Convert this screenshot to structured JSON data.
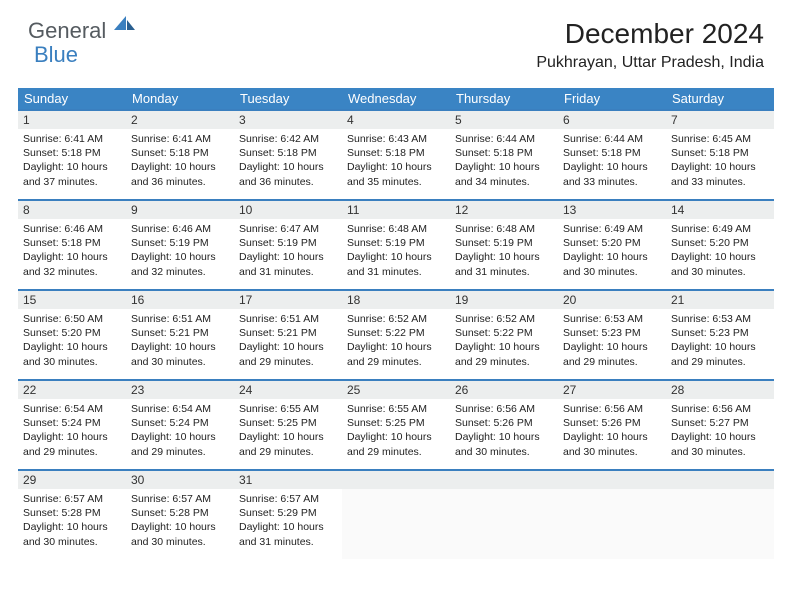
{
  "logo": {
    "text1": "General",
    "text2": "Blue"
  },
  "title": "December 2024",
  "subtitle": "Pukhrayan, Uttar Pradesh, India",
  "colors": {
    "header_bg": "#3a84c4",
    "header_text": "#ffffff",
    "row_border": "#3a7fbf",
    "daynum_bg": "#eceeee",
    "body_text": "#222222",
    "logo_gray": "#555b60",
    "logo_blue": "#3a7fbf",
    "page_bg": "#ffffff"
  },
  "fonts": {
    "title_size": 28,
    "subtitle_size": 16,
    "dayname_size": 13,
    "daynum_size": 12,
    "cell_size": 10.5
  },
  "daynames": [
    "Sunday",
    "Monday",
    "Tuesday",
    "Wednesday",
    "Thursday",
    "Friday",
    "Saturday"
  ],
  "weeks": [
    [
      {
        "n": "1",
        "sunrise": "Sunrise: 6:41 AM",
        "sunset": "Sunset: 5:18 PM",
        "day": "Daylight: 10 hours and 37 minutes."
      },
      {
        "n": "2",
        "sunrise": "Sunrise: 6:41 AM",
        "sunset": "Sunset: 5:18 PM",
        "day": "Daylight: 10 hours and 36 minutes."
      },
      {
        "n": "3",
        "sunrise": "Sunrise: 6:42 AM",
        "sunset": "Sunset: 5:18 PM",
        "day": "Daylight: 10 hours and 36 minutes."
      },
      {
        "n": "4",
        "sunrise": "Sunrise: 6:43 AM",
        "sunset": "Sunset: 5:18 PM",
        "day": "Daylight: 10 hours and 35 minutes."
      },
      {
        "n": "5",
        "sunrise": "Sunrise: 6:44 AM",
        "sunset": "Sunset: 5:18 PM",
        "day": "Daylight: 10 hours and 34 minutes."
      },
      {
        "n": "6",
        "sunrise": "Sunrise: 6:44 AM",
        "sunset": "Sunset: 5:18 PM",
        "day": "Daylight: 10 hours and 33 minutes."
      },
      {
        "n": "7",
        "sunrise": "Sunrise: 6:45 AM",
        "sunset": "Sunset: 5:18 PM",
        "day": "Daylight: 10 hours and 33 minutes."
      }
    ],
    [
      {
        "n": "8",
        "sunrise": "Sunrise: 6:46 AM",
        "sunset": "Sunset: 5:18 PM",
        "day": "Daylight: 10 hours and 32 minutes."
      },
      {
        "n": "9",
        "sunrise": "Sunrise: 6:46 AM",
        "sunset": "Sunset: 5:19 PM",
        "day": "Daylight: 10 hours and 32 minutes."
      },
      {
        "n": "10",
        "sunrise": "Sunrise: 6:47 AM",
        "sunset": "Sunset: 5:19 PM",
        "day": "Daylight: 10 hours and 31 minutes."
      },
      {
        "n": "11",
        "sunrise": "Sunrise: 6:48 AM",
        "sunset": "Sunset: 5:19 PM",
        "day": "Daylight: 10 hours and 31 minutes."
      },
      {
        "n": "12",
        "sunrise": "Sunrise: 6:48 AM",
        "sunset": "Sunset: 5:19 PM",
        "day": "Daylight: 10 hours and 31 minutes."
      },
      {
        "n": "13",
        "sunrise": "Sunrise: 6:49 AM",
        "sunset": "Sunset: 5:20 PM",
        "day": "Daylight: 10 hours and 30 minutes."
      },
      {
        "n": "14",
        "sunrise": "Sunrise: 6:49 AM",
        "sunset": "Sunset: 5:20 PM",
        "day": "Daylight: 10 hours and 30 minutes."
      }
    ],
    [
      {
        "n": "15",
        "sunrise": "Sunrise: 6:50 AM",
        "sunset": "Sunset: 5:20 PM",
        "day": "Daylight: 10 hours and 30 minutes."
      },
      {
        "n": "16",
        "sunrise": "Sunrise: 6:51 AM",
        "sunset": "Sunset: 5:21 PM",
        "day": "Daylight: 10 hours and 30 minutes."
      },
      {
        "n": "17",
        "sunrise": "Sunrise: 6:51 AM",
        "sunset": "Sunset: 5:21 PM",
        "day": "Daylight: 10 hours and 29 minutes."
      },
      {
        "n": "18",
        "sunrise": "Sunrise: 6:52 AM",
        "sunset": "Sunset: 5:22 PM",
        "day": "Daylight: 10 hours and 29 minutes."
      },
      {
        "n": "19",
        "sunrise": "Sunrise: 6:52 AM",
        "sunset": "Sunset: 5:22 PM",
        "day": "Daylight: 10 hours and 29 minutes."
      },
      {
        "n": "20",
        "sunrise": "Sunrise: 6:53 AM",
        "sunset": "Sunset: 5:23 PM",
        "day": "Daylight: 10 hours and 29 minutes."
      },
      {
        "n": "21",
        "sunrise": "Sunrise: 6:53 AM",
        "sunset": "Sunset: 5:23 PM",
        "day": "Daylight: 10 hours and 29 minutes."
      }
    ],
    [
      {
        "n": "22",
        "sunrise": "Sunrise: 6:54 AM",
        "sunset": "Sunset: 5:24 PM",
        "day": "Daylight: 10 hours and 29 minutes."
      },
      {
        "n": "23",
        "sunrise": "Sunrise: 6:54 AM",
        "sunset": "Sunset: 5:24 PM",
        "day": "Daylight: 10 hours and 29 minutes."
      },
      {
        "n": "24",
        "sunrise": "Sunrise: 6:55 AM",
        "sunset": "Sunset: 5:25 PM",
        "day": "Daylight: 10 hours and 29 minutes."
      },
      {
        "n": "25",
        "sunrise": "Sunrise: 6:55 AM",
        "sunset": "Sunset: 5:25 PM",
        "day": "Daylight: 10 hours and 29 minutes."
      },
      {
        "n": "26",
        "sunrise": "Sunrise: 6:56 AM",
        "sunset": "Sunset: 5:26 PM",
        "day": "Daylight: 10 hours and 30 minutes."
      },
      {
        "n": "27",
        "sunrise": "Sunrise: 6:56 AM",
        "sunset": "Sunset: 5:26 PM",
        "day": "Daylight: 10 hours and 30 minutes."
      },
      {
        "n": "28",
        "sunrise": "Sunrise: 6:56 AM",
        "sunset": "Sunset: 5:27 PM",
        "day": "Daylight: 10 hours and 30 minutes."
      }
    ],
    [
      {
        "n": "29",
        "sunrise": "Sunrise: 6:57 AM",
        "sunset": "Sunset: 5:28 PM",
        "day": "Daylight: 10 hours and 30 minutes."
      },
      {
        "n": "30",
        "sunrise": "Sunrise: 6:57 AM",
        "sunset": "Sunset: 5:28 PM",
        "day": "Daylight: 10 hours and 30 minutes."
      },
      {
        "n": "31",
        "sunrise": "Sunrise: 6:57 AM",
        "sunset": "Sunset: 5:29 PM",
        "day": "Daylight: 10 hours and 31 minutes."
      },
      null,
      null,
      null,
      null
    ]
  ]
}
